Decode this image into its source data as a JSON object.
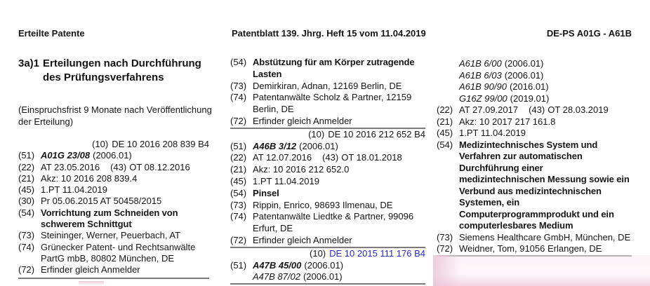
{
  "colors": {
    "text": "#141414",
    "link_blue": "#2727cc",
    "rule_gray": "#7b7b7b",
    "artifact_pink": "#ecc8d8"
  },
  "header": {
    "left": "Erteilte Patente",
    "center": "Patentblatt 139. Jhrg. Heft 15 vom 11.04.2019",
    "right": "DE-PS A01G - A61B"
  },
  "section_heading": {
    "number": "3a)1",
    "line1": "Erteilungen nach Durchführung",
    "line2": "des Prüfungsverfahrens"
  },
  "opposition_note": {
    "line1": "(Einspruchsfrist 9 Monate nach Veröffentlichung",
    "line2": "der Erteilung)"
  },
  "columns": {
    "left": {
      "lines": [
        {
          "align": "right",
          "label": "(10)",
          "segs": [
            {
              "t": "DE 10 2016 208 839 B4"
            }
          ]
        },
        {
          "label": "(51)",
          "segs": [
            {
              "t": "A01G 23/08",
              "st": "bi"
            },
            {
              "t": "(2006.01)"
            }
          ]
        },
        {
          "label": "(22)",
          "segs": [
            {
              "t": "AT 23.05.2016"
            },
            {
              "t": "(43)",
              "gap": true
            },
            {
              "t": "OT 08.12.2016"
            }
          ]
        },
        {
          "label": "(21)",
          "segs": [
            {
              "t": "Akz: 10 2016 208 839.4"
            }
          ]
        },
        {
          "label": "(45)",
          "segs": [
            {
              "t": "1.PT 11.04.2019"
            }
          ]
        },
        {
          "label": "(30)",
          "segs": [
            {
              "t": "Pr 05.06.2015 AT 50458/2015"
            }
          ]
        },
        {
          "label": "(54)",
          "segs": [
            {
              "t": "Vorrichtung zum Schneiden von",
              "st": "bold"
            }
          ]
        },
        {
          "indent": true,
          "segs": [
            {
              "t": "schwerem Schnittgut",
              "st": "bold"
            }
          ]
        },
        {
          "label": "(73)",
          "segs": [
            {
              "t": "Steininger, Werner, Peuerbach, AT"
            }
          ]
        },
        {
          "label": "(74)",
          "segs": [
            {
              "t": "Grünecker Patent- und Rechtsanwälte"
            }
          ]
        },
        {
          "indent": true,
          "segs": [
            {
              "t": "PartG mbB, 80802 München, DE"
            }
          ]
        },
        {
          "label": "(72)",
          "segs": [
            {
              "t": "Erfinder gleich Anmelder"
            }
          ]
        },
        {
          "rule": true
        }
      ]
    },
    "middle": {
      "lines": [
        {
          "label": "(54)",
          "segs": [
            {
              "t": "Abstützung für am Körper zutragende",
              "st": "bold"
            }
          ]
        },
        {
          "indent": true,
          "segs": [
            {
              "t": "Lasten",
              "st": "bold"
            }
          ]
        },
        {
          "label": "(73)",
          "segs": [
            {
              "t": "Demirkiran, Adnan, 12169 Berlin, DE"
            }
          ]
        },
        {
          "label": "(74)",
          "segs": [
            {
              "t": "Patentanwälte Scholz & Partner, 12159"
            }
          ]
        },
        {
          "indent": true,
          "segs": [
            {
              "t": "Berlin, DE"
            }
          ]
        },
        {
          "label": "(72)",
          "segs": [
            {
              "t": "Erfinder gleich Anmelder"
            }
          ]
        },
        {
          "rule": true
        },
        {
          "align": "right",
          "label": "(10)",
          "segs": [
            {
              "t": "DE 10 2016 212 652 B4"
            }
          ]
        },
        {
          "label": "(51)",
          "segs": [
            {
              "t": "A46B 3/12",
              "st": "bi"
            },
            {
              "t": "(2006.01)"
            }
          ]
        },
        {
          "label": "(22)",
          "segs": [
            {
              "t": "AT 12.07.2016"
            },
            {
              "t": "(43)",
              "gap": true
            },
            {
              "t": "OT 18.01.2018"
            }
          ]
        },
        {
          "label": "(21)",
          "segs": [
            {
              "t": "Akz: 10 2016 212 652.0"
            }
          ]
        },
        {
          "label": "(45)",
          "segs": [
            {
              "t": "1.PT 11.04.2019"
            }
          ]
        },
        {
          "label": "(54)",
          "segs": [
            {
              "t": "Pinsel",
              "st": "bold"
            }
          ]
        },
        {
          "label": "(73)",
          "segs": [
            {
              "t": "Rippin, Enrico, 98693 Ilmenau, DE"
            }
          ]
        },
        {
          "label": "(74)",
          "segs": [
            {
              "t": "Patentanwälte Liedtke & Partner, 99096"
            }
          ]
        },
        {
          "indent": true,
          "segs": [
            {
              "t": "Erfurt, DE"
            }
          ]
        },
        {
          "label": "(72)",
          "segs": [
            {
              "t": "Erfinder gleich Anmelder"
            }
          ]
        },
        {
          "rule": true
        },
        {
          "align": "right",
          "label": "(10)",
          "segs": [
            {
              "t": "DE 10 2015 111 176 B4",
              "st": "blue"
            }
          ]
        },
        {
          "label": "(51)",
          "segs": [
            {
              "t": "A47B 45/00",
              "st": "bi"
            },
            {
              "t": "(2006.01)"
            }
          ]
        },
        {
          "indent": true,
          "segs": [
            {
              "t": "A47B 87/02",
              "st": "i"
            },
            {
              "t": "(2006.01)"
            }
          ]
        },
        {
          "rule": true
        }
      ]
    },
    "right": {
      "lines": [
        {
          "indent": true,
          "segs": [
            {
              "t": "A61B 6/00",
              "st": "i"
            },
            {
              "t": "(2006.01)"
            }
          ]
        },
        {
          "indent": true,
          "segs": [
            {
              "t": "A61B 6/03",
              "st": "i"
            },
            {
              "t": "(2006.01)"
            }
          ]
        },
        {
          "indent": true,
          "segs": [
            {
              "t": "A61B 90/90",
              "st": "i"
            },
            {
              "t": "(2016.01)"
            }
          ]
        },
        {
          "indent": true,
          "segs": [
            {
              "t": "G16Z 99/00",
              "st": "i"
            },
            {
              "t": "(2019.01)"
            }
          ]
        },
        {
          "label": "(22)",
          "segs": [
            {
              "t": "AT 27.09.2017"
            },
            {
              "t": "(43)",
              "gap": true
            },
            {
              "t": "OT 28.03.2019"
            }
          ]
        },
        {
          "label": "(21)",
          "segs": [
            {
              "t": "Akz: 10 2017 217 161.8"
            }
          ]
        },
        {
          "label": "(45)",
          "segs": [
            {
              "t": "1.PT 11.04.2019"
            }
          ]
        },
        {
          "label": "(54)",
          "segs": [
            {
              "t": "Medizintechnisches System und",
              "st": "bold"
            }
          ]
        },
        {
          "indent": true,
          "segs": [
            {
              "t": "Verfahren zur automatischen",
              "st": "bold"
            }
          ]
        },
        {
          "indent": true,
          "segs": [
            {
              "t": "Durchführung einer",
              "st": "bold"
            }
          ]
        },
        {
          "indent": true,
          "segs": [
            {
              "t": "medizintechnischen Messung sowie ein",
              "st": "bold"
            }
          ]
        },
        {
          "indent": true,
          "segs": [
            {
              "t": "Verbund aus medizintechnischen",
              "st": "bold"
            }
          ]
        },
        {
          "indent": true,
          "segs": [
            {
              "t": "Systemen, ein",
              "st": "bold"
            }
          ]
        },
        {
          "indent": true,
          "segs": [
            {
              "t": "Computerprogrammprodukt und ein",
              "st": "bold"
            }
          ]
        },
        {
          "indent": true,
          "segs": [
            {
              "t": "computerlesbares Medium",
              "st": "bold"
            }
          ]
        },
        {
          "label": "(73)",
          "segs": [
            {
              "t": "Siemens Healthcare GmbH, München, DE"
            }
          ]
        },
        {
          "label": "(72)",
          "segs": [
            {
              "t": "Weidner, Tom, 91056 Erlangen, DE"
            }
          ]
        },
        {
          "rule": true
        }
      ]
    }
  }
}
